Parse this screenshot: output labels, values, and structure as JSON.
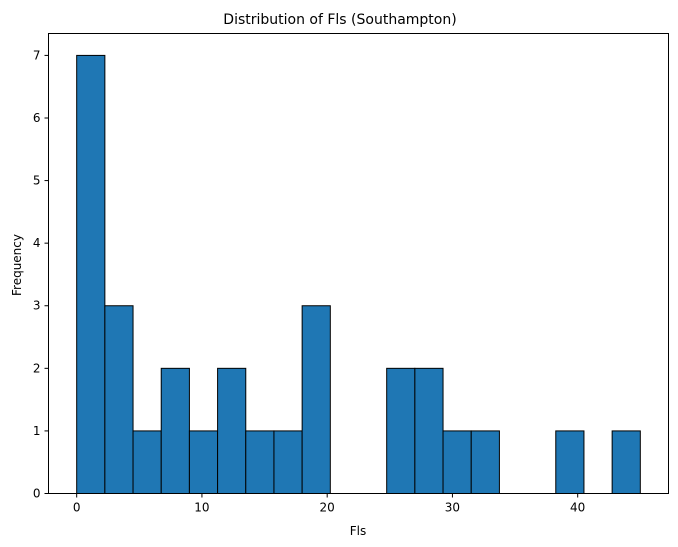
{
  "chart_data": {
    "type": "bar",
    "title": "Distribution of Fls (Southampton)",
    "xlabel": "Fls",
    "ylabel": "Frequency",
    "bin_edges": [
      0,
      2.25,
      4.5,
      6.75,
      9,
      11.25,
      13.5,
      15.75,
      18,
      20.25,
      22.5,
      24.75,
      27,
      29.25,
      31.5,
      33.75,
      36,
      38.25,
      40.5,
      42.75,
      45
    ],
    "values": [
      7,
      3,
      1,
      2,
      1,
      2,
      1,
      1,
      3,
      0,
      0,
      2,
      2,
      1,
      1,
      0,
      0,
      1,
      0,
      1
    ],
    "xlim": [
      -2.25,
      47.25
    ],
    "ylim": [
      0,
      7.35
    ],
    "xticks": [
      0,
      10,
      20,
      30,
      40
    ],
    "yticks": [
      0,
      1,
      2,
      3,
      4,
      5,
      6,
      7
    ],
    "bar_color": "#1f77b4",
    "grid": false
  }
}
